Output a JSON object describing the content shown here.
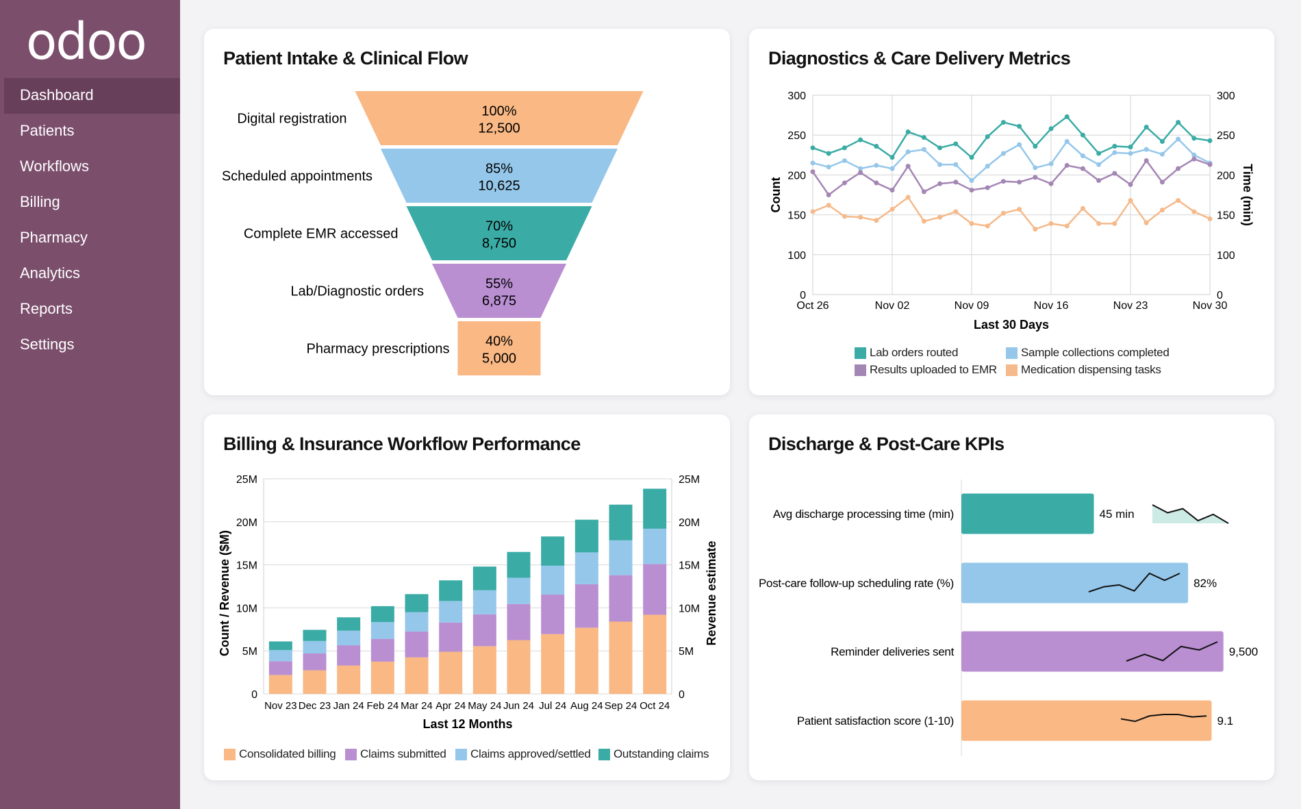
{
  "sidebar": {
    "logo": "odoo",
    "items": [
      {
        "label": "Dashboard",
        "active": true
      },
      {
        "label": "Patients"
      },
      {
        "label": "Workflows"
      },
      {
        "label": "Billing"
      },
      {
        "label": "Pharmacy"
      },
      {
        "label": "Analytics"
      },
      {
        "label": "Reports"
      },
      {
        "label": "Settings"
      }
    ]
  },
  "colors": {
    "teal": "#3aaba5",
    "blue": "#95c7ea",
    "purple": "#b98fd2",
    "orange": "#f9b884",
    "sidebar": "#7b4e6c"
  },
  "chart_data": [
    {
      "type": "funnel",
      "title": "Patient Intake & Clinical Flow",
      "stages": [
        {
          "label": "Digital registration",
          "percent": "100%",
          "value": "12,500",
          "color": "#f9b884"
        },
        {
          "label": "Scheduled appointments",
          "percent": "85%",
          "value": "10,625",
          "color": "#95c7ea"
        },
        {
          "label": "Complete EMR accessed",
          "percent": "70%",
          "value": "8,750",
          "color": "#3aaba5"
        },
        {
          "label": "Lab/Diagnostic orders",
          "percent": "55%",
          "value": "6,875",
          "color": "#b98fd2"
        },
        {
          "label": "Pharmacy prescriptions",
          "percent": "40%",
          "value": "5,000",
          "color": "#f9b884"
        }
      ]
    },
    {
      "type": "line",
      "title": "Diagnostics & Care Delivery Metrics",
      "xlabel": "Last 30 Days",
      "ylabel": "Count",
      "ylabel_right": "Time (min)",
      "x_ticks": [
        "Oct 26",
        "Nov 02",
        "Nov 09",
        "Nov 16",
        "Nov 23",
        "Nov 30"
      ],
      "y_ticks": [
        "0",
        "100",
        "150",
        "200",
        "250",
        "300"
      ],
      "ylim": [
        50,
        300
      ],
      "grid": true,
      "legend_position": "bottom",
      "series": [
        {
          "name": "Lab orders routed",
          "color": "#3aaba5",
          "values": [
            234,
            227,
            234,
            244,
            236,
            222,
            254,
            247,
            234,
            239,
            222,
            248,
            266,
            261,
            236,
            258,
            273,
            250,
            227,
            236,
            235,
            260,
            242,
            266,
            246,
            243
          ]
        },
        {
          "name": "Sample collections completed",
          "color": "#95c7ea",
          "values": [
            215,
            210,
            218,
            208,
            212,
            208,
            229,
            232,
            213,
            213,
            193,
            211,
            227,
            238,
            209,
            214,
            242,
            224,
            213,
            228,
            227,
            232,
            226,
            245,
            225,
            215
          ]
        },
        {
          "name": "Results uploaded to EMR",
          "color": "#a486b4",
          "values": [
            204,
            175,
            190,
            203,
            190,
            181,
            211,
            179,
            189,
            191,
            181,
            184,
            192,
            191,
            197,
            189,
            212,
            208,
            193,
            202,
            188,
            218,
            191,
            208,
            220,
            213
          ]
        },
        {
          "name": "Medication dispensing tasks",
          "color": "#f5b98a",
          "values": [
            154,
            162,
            148,
            147,
            143,
            157,
            172,
            142,
            147,
            154,
            139,
            136,
            152,
            157,
            132,
            139,
            136,
            158,
            139,
            139,
            168,
            140,
            156,
            168,
            154,
            145
          ]
        }
      ]
    },
    {
      "type": "bar",
      "stacked": true,
      "title": "Billing & Insurance Workflow Performance",
      "xlabel": "Last 12 Months",
      "ylabel": "Count / Revenue ($M)",
      "ylabel_right": "Revenue estimate",
      "ylim": [
        0,
        25
      ],
      "y_ticks": [
        "0",
        "5M",
        "10M",
        "15M",
        "20M",
        "25M"
      ],
      "categories": [
        "Nov 23",
        "Dec 23",
        "Jan 24",
        "Feb 24",
        "Mar 24",
        "Apr 24",
        "May 24",
        "Jun 24",
        "Jul 24",
        "Aug 24",
        "Sep 24",
        "Oct 24"
      ],
      "legend_position": "bottom",
      "series": [
        {
          "name": "Consolidated billing",
          "color": "#f9b884",
          "values": [
            2.2,
            2.75,
            3.3,
            3.75,
            4.25,
            4.9,
            5.55,
            6.25,
            6.95,
            7.7,
            8.4,
            9.2
          ]
        },
        {
          "name": "Claims submitted",
          "color": "#b98fd2",
          "values": [
            1.6,
            1.95,
            2.35,
            2.65,
            3.0,
            3.4,
            3.7,
            4.2,
            4.6,
            5.05,
            5.4,
            5.9
          ]
        },
        {
          "name": "Claims approved/settled",
          "color": "#95c7ea",
          "values": [
            1.3,
            1.45,
            1.7,
            1.95,
            2.25,
            2.5,
            2.8,
            3.05,
            3.35,
            3.7,
            4.05,
            4.1
          ]
        },
        {
          "name": "Outstanding claims",
          "color": "#3aaba5",
          "values": [
            1.0,
            1.3,
            1.55,
            1.85,
            2.1,
            2.4,
            2.75,
            3.0,
            3.4,
            3.8,
            4.15,
            4.65
          ]
        }
      ]
    },
    {
      "type": "bar",
      "orientation": "horizontal",
      "title": "Discharge & Post-Care KPIs",
      "items": [
        {
          "label": "Avg discharge processing time (min)",
          "value": "45 min",
          "level": 0.45,
          "color": "#3aaba5",
          "sparkline": [
            82,
            47,
            65,
            12,
            40,
            0
          ],
          "sparkline_outside": true
        },
        {
          "label": "Post-care follow-up scheduling rate (%)",
          "value": "82%",
          "level": 0.77,
          "color": "#95c7ea",
          "sparkline": [
            0,
            22,
            30,
            4,
            80,
            50,
            80
          ]
        },
        {
          "label": "Reminder deliveries sent",
          "value": "9,500",
          "level": 0.89,
          "color": "#b98fd2",
          "sparkline": [
            0,
            29,
            2,
            63,
            48,
            83
          ]
        },
        {
          "label": "Patient satisfaction score (1-10)",
          "value": "9.1",
          "level": 0.85,
          "color": "#f9b884",
          "sparkline": [
            10,
            0,
            22,
            28,
            28,
            18,
            22
          ]
        }
      ]
    }
  ]
}
